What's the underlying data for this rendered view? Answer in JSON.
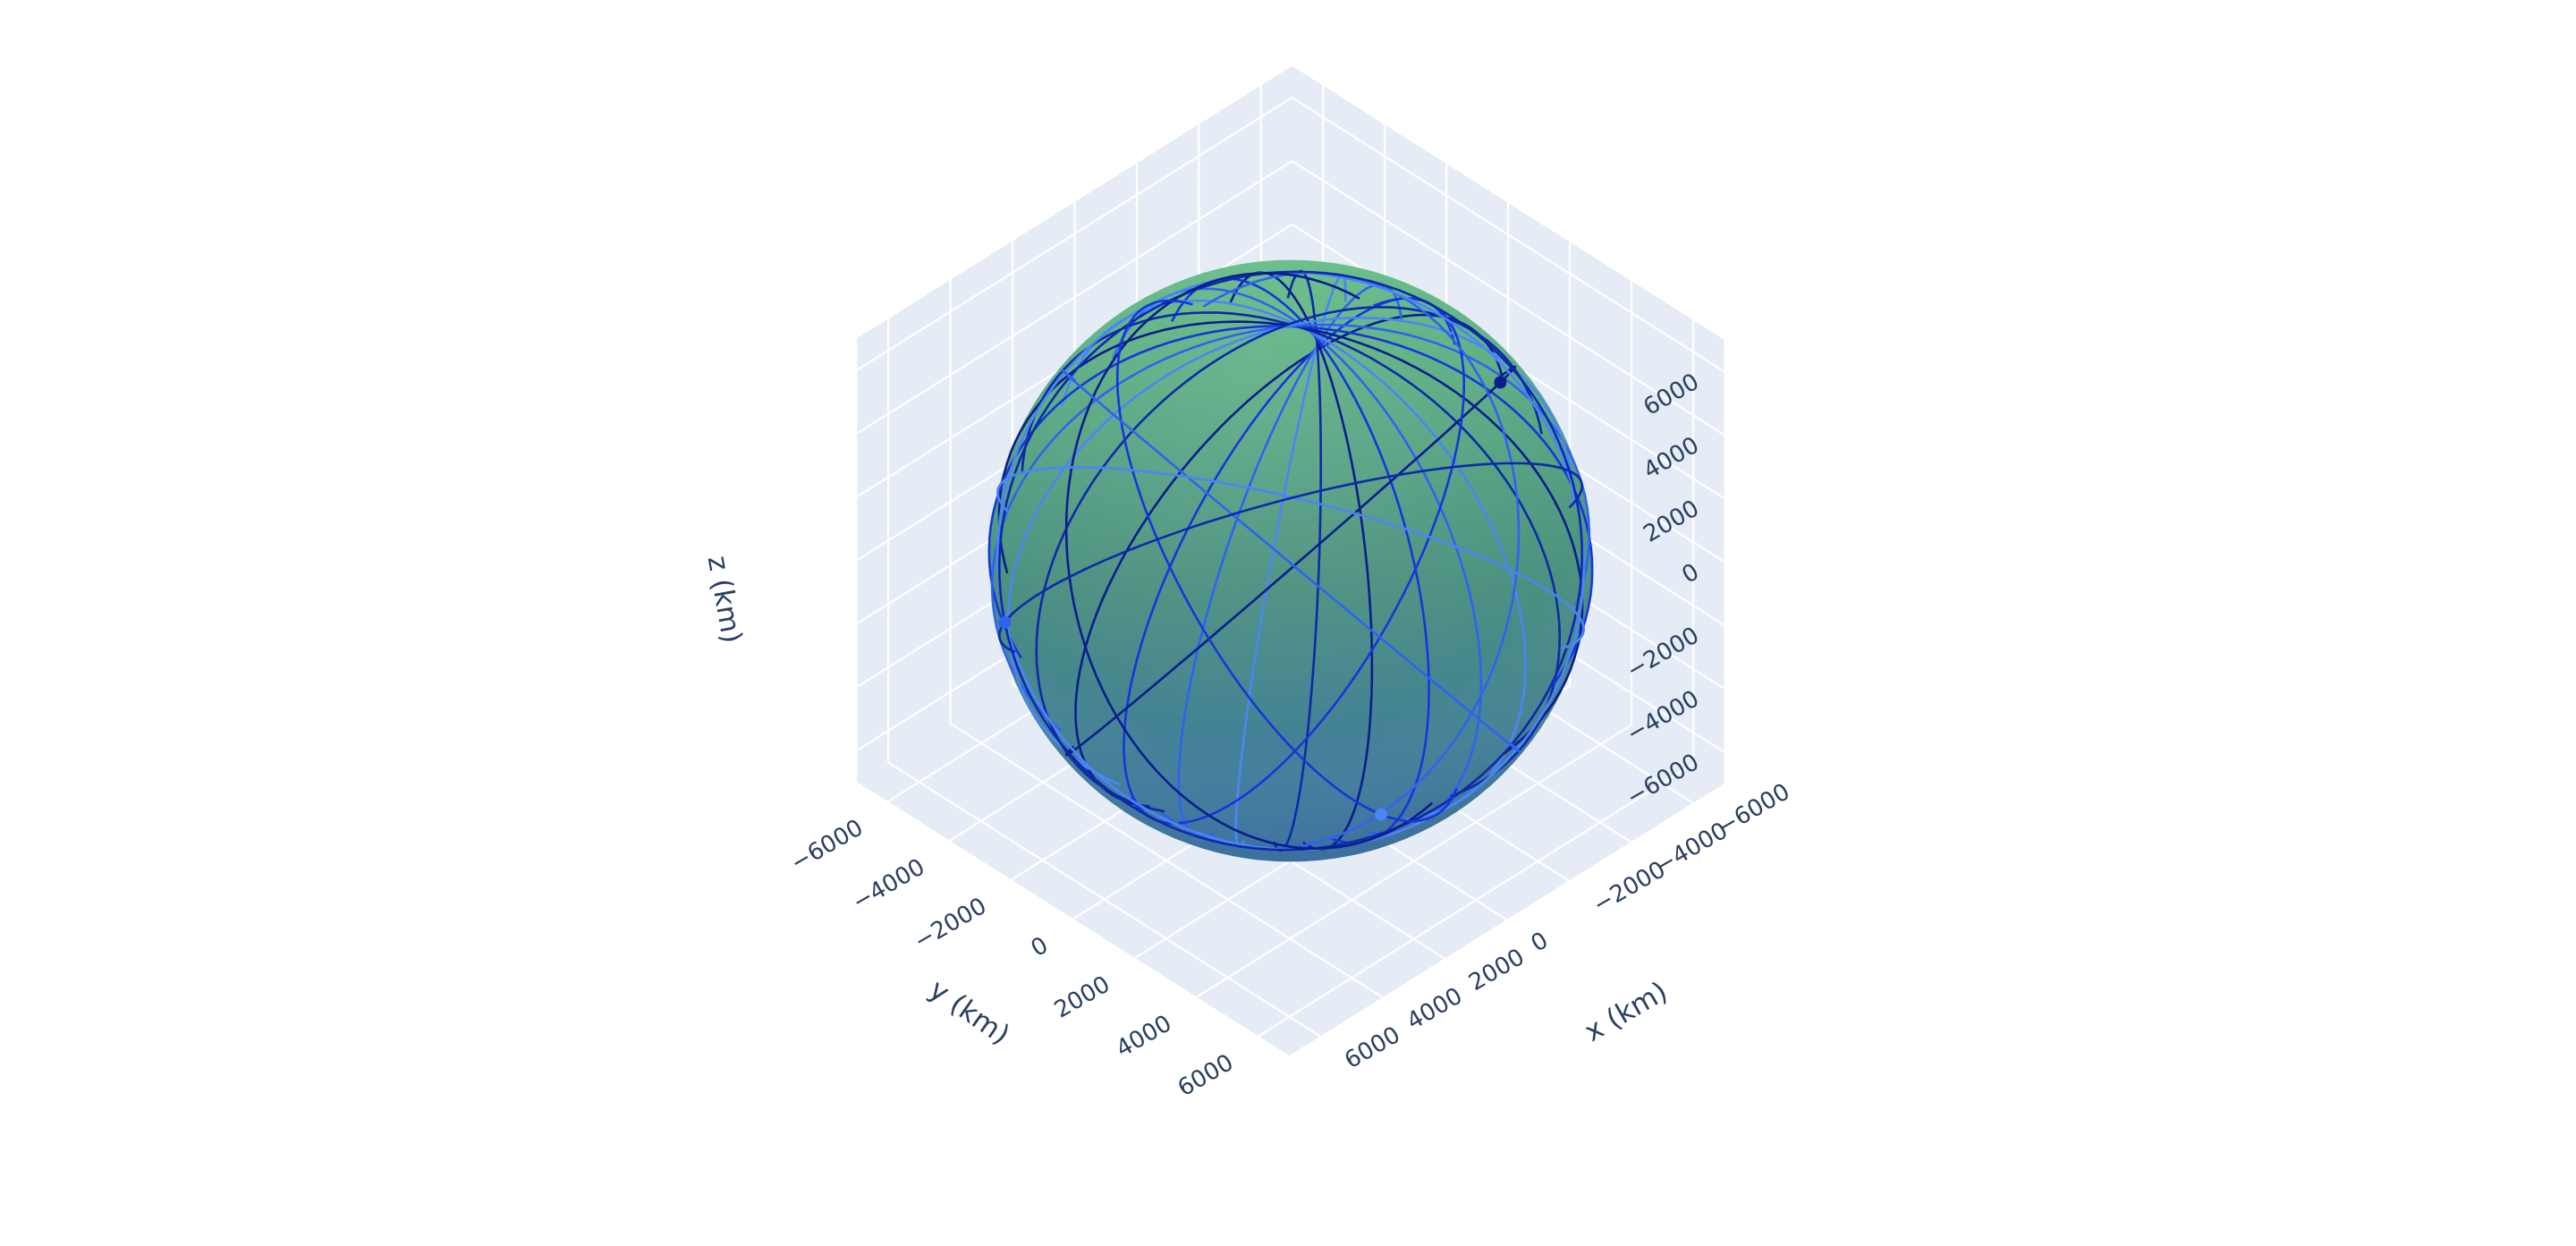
{
  "chart_data": {
    "type": "scatter3d",
    "scene": {
      "bgcolor": "#e5ecf6",
      "gridcolor": "#ffffff",
      "text_color": "#2a3f5f",
      "xlabel": "x (km)",
      "ylabel": "y (km)",
      "zlabel": "z (km)",
      "xlim": [
        -7000,
        7000
      ],
      "ylim": [
        -7000,
        7000
      ],
      "zlim": [
        -7000,
        7000
      ],
      "xticks": [
        -6000,
        -4000,
        -2000,
        0,
        2000,
        4000,
        6000
      ],
      "yticks": [
        -6000,
        -4000,
        -2000,
        0,
        2000,
        4000,
        6000
      ],
      "zticks": [
        -6000,
        -4000,
        -2000,
        0,
        2000,
        4000,
        6000
      ],
      "x_tick_labels": [
        "−6000",
        "−4000",
        "−2000",
        "0",
        "2000",
        "4000",
        "6000"
      ],
      "y_tick_labels": [
        "−6000",
        "−4000",
        "−2000",
        "0",
        "2000",
        "4000",
        "6000"
      ],
      "z_tick_labels": [
        "−6000",
        "−4000",
        "−2000",
        "0",
        "2000",
        "4000",
        "6000"
      ],
      "grid": true
    },
    "earth": {
      "radius_km": 6371,
      "colors": {
        "top": "#62bb82",
        "middle": "#4b8f80",
        "bottom": "#3c75a9"
      }
    },
    "orbits": {
      "radius_km": 6900,
      "line_colors": [
        "#0a1e8c",
        "#1436dc",
        "#2e63f2",
        "#4a86f5",
        "#0d2aa8"
      ],
      "planes": [
        {
          "inclination_deg": 85,
          "raan_deg": 0
        },
        {
          "inclination_deg": 85,
          "raan_deg": 12
        },
        {
          "inclination_deg": 85,
          "raan_deg": 24
        },
        {
          "inclination_deg": 85,
          "raan_deg": 36
        },
        {
          "inclination_deg": 85,
          "raan_deg": 48
        },
        {
          "inclination_deg": 85,
          "raan_deg": 60
        },
        {
          "inclination_deg": 85,
          "raan_deg": 72
        },
        {
          "inclination_deg": 85,
          "raan_deg": 84
        },
        {
          "inclination_deg": 85,
          "raan_deg": 96
        },
        {
          "inclination_deg": 85,
          "raan_deg": 108
        },
        {
          "inclination_deg": 85,
          "raan_deg": 120
        },
        {
          "inclination_deg": 85,
          "raan_deg": 132
        },
        {
          "inclination_deg": 85,
          "raan_deg": 144
        },
        {
          "inclination_deg": 85,
          "raan_deg": 156
        },
        {
          "inclination_deg": 85,
          "raan_deg": 168
        },
        {
          "inclination_deg": 55,
          "raan_deg": 10
        },
        {
          "inclination_deg": 55,
          "raan_deg": 46
        },
        {
          "inclination_deg": 55,
          "raan_deg": 82
        },
        {
          "inclination_deg": 55,
          "raan_deg": 118
        },
        {
          "inclination_deg": 55,
          "raan_deg": 154
        },
        {
          "inclination_deg": 55,
          "raan_deg": 190
        },
        {
          "inclination_deg": 55,
          "raan_deg": 226
        },
        {
          "inclination_deg": 55,
          "raan_deg": 262
        },
        {
          "inclination_deg": 55,
          "raan_deg": 298
        },
        {
          "inclination_deg": 55,
          "raan_deg": 334
        }
      ],
      "satellites": [
        {
          "plane": 0,
          "anomaly_deg": 200
        },
        {
          "plane": 3,
          "anomaly_deg": 215
        },
        {
          "plane": 6,
          "anomaly_deg": 230
        },
        {
          "plane": 9,
          "anomaly_deg": 245
        },
        {
          "plane": 12,
          "anomaly_deg": 260
        },
        {
          "plane": 15,
          "anomaly_deg": 120
        },
        {
          "plane": 17,
          "anomaly_deg": 150
        },
        {
          "plane": 19,
          "anomaly_deg": 180
        },
        {
          "plane": 21,
          "anomaly_deg": 210
        },
        {
          "plane": 23,
          "anomaly_deg": 240
        }
      ]
    }
  }
}
